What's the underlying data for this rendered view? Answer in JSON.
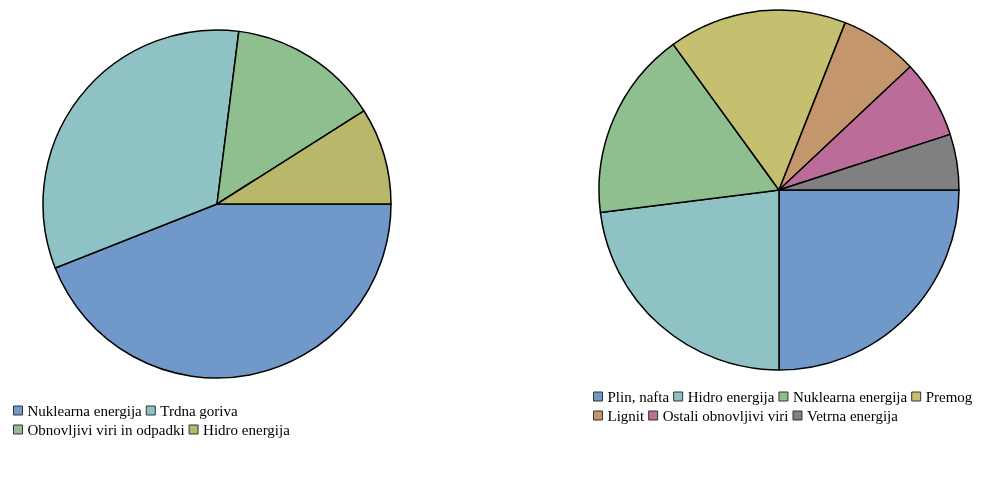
{
  "chart_data": [
    {
      "type": "pie",
      "categories": [
        "Nuklearna energija",
        "Trdna goriva",
        "Obnovljivi viri in odpadki",
        "Hidro energija"
      ],
      "values": [
        44,
        33,
        14,
        9
      ],
      "colors": [
        "#7098c8",
        "#8fc2c4",
        "#8fbf8f",
        "#b8b76a"
      ],
      "legend": "bottom"
    },
    {
      "type": "pie",
      "categories": [
        "Plin, nafta",
        "Hidro energija",
        "Nuklearna energija",
        "Premog",
        "Lignit",
        "Ostali obnovljivi viri",
        "Vetrna energija"
      ],
      "values": [
        25,
        23,
        17,
        16,
        7,
        7,
        5
      ],
      "colors": [
        "#7098c8",
        "#8fc2c4",
        "#8fbf8f",
        "#c4c070",
        "#c4966c",
        "#bb6c98",
        "#808080"
      ],
      "legend": "bottom"
    }
  ]
}
